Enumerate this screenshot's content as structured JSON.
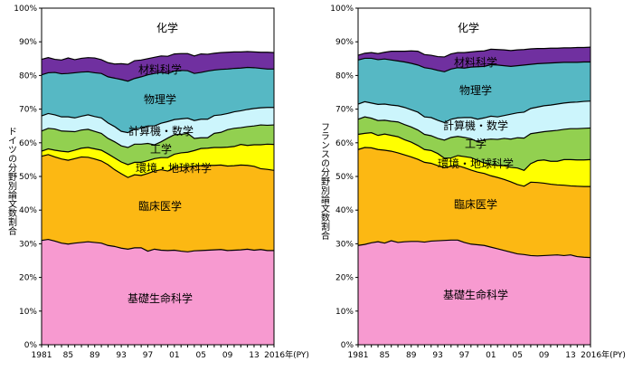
{
  "chart_data": [
    {
      "type": "area",
      "ylabel": "ドイツの分野別論文数割合",
      "x_ticks": [
        "1981",
        "85",
        "89",
        "93",
        "97",
        "01",
        "05",
        "09",
        "13",
        "2016年(PY)"
      ],
      "x": [
        1981,
        1982,
        1983,
        1984,
        1985,
        1986,
        1987,
        1988,
        1989,
        1990,
        1991,
        1992,
        1993,
        1994,
        1995,
        1996,
        1997,
        1998,
        1999,
        2000,
        2001,
        2002,
        2003,
        2004,
        2005,
        2006,
        2007,
        2008,
        2009,
        2010,
        2011,
        2012,
        2013,
        2014,
        2015,
        2016
      ],
      "xlim": [
        1981,
        2016
      ],
      "ylim": [
        0,
        100
      ],
      "y_ticks": [
        "0%",
        "10%",
        "20%",
        "30%",
        "40%",
        "50%",
        "60%",
        "70%",
        "80%",
        "90%",
        "100%"
      ],
      "stack_order": [
        "基礎生命科学",
        "臨床医学",
        "環境・地球科学",
        "工学",
        "計算機・数学",
        "物理学",
        "材料科学",
        "化学"
      ],
      "boundaries": [
        {
          "name": "基礎生命科学",
          "values": [
            31,
            31.3,
            30.8,
            30.2,
            29.9,
            30.2,
            30.4,
            30.6,
            30.4,
            30.2,
            29.5,
            29.2,
            28.7,
            28.4,
            28.8,
            28.8,
            27.8,
            28.4,
            28.1,
            28,
            28.1,
            27.8,
            27.6,
            27.9,
            28,
            28.1,
            28.2,
            28.3,
            28,
            28.1,
            28.2,
            28.4,
            28.1,
            28.3,
            28,
            28
          ]
        },
        {
          "name": "臨床医学",
          "values": [
            56,
            56.5,
            55.8,
            55.2,
            54.8,
            55.3,
            55.8,
            55.7,
            55.2,
            54.6,
            53.5,
            52,
            50.8,
            49.7,
            50.5,
            50.3,
            50.9,
            51.6,
            52,
            51.6,
            52.6,
            52.8,
            52.8,
            53.1,
            53.2,
            53.3,
            53.3,
            53.4,
            53.1,
            53.2,
            53.4,
            53.3,
            53,
            52.3,
            52.1,
            51.8
          ]
        },
        {
          "name": "環境・地球科学",
          "values": [
            57.5,
            58.2,
            57.8,
            57.5,
            57.3,
            57.8,
            58.4,
            58.6,
            58.2,
            57.8,
            56.7,
            55.5,
            54.3,
            53.5,
            54.2,
            54.2,
            54.7,
            55.3,
            55.6,
            55.6,
            56.6,
            57,
            57.2,
            57.7,
            58.3,
            58.4,
            58.6,
            58.6,
            58.7,
            58.9,
            59.5,
            59.2,
            59.4,
            59.4,
            59.6,
            59.5
          ]
        },
        {
          "name": "工学",
          "values": [
            63.5,
            64.3,
            64.1,
            63.5,
            63.4,
            63.3,
            63.8,
            64,
            63.4,
            62.8,
            61.3,
            60.3,
            59.1,
            58.6,
            59.6,
            59.6,
            59.8,
            59.4,
            60.3,
            61.4,
            62.4,
            62.5,
            62.8,
            61.3,
            61.5,
            61.5,
            62.8,
            63.1,
            63.9,
            64.3,
            64.5,
            64.8,
            65,
            65.3,
            65.2,
            65.3
          ]
        },
        {
          "name": "計算機・数学",
          "values": [
            68,
            68.7,
            68.3,
            67.7,
            67.7,
            67.4,
            67.9,
            68.3,
            67.8,
            67.4,
            65.9,
            64.8,
            63.4,
            63,
            64.2,
            64.3,
            65,
            65,
            65.8,
            66.3,
            66.9,
            67.1,
            67.3,
            66.6,
            67,
            67,
            68.1,
            68.3,
            68.7,
            69.2,
            69.5,
            69.9,
            70.2,
            70.4,
            70.5,
            70.5
          ]
        },
        {
          "name": "物理学",
          "values": [
            80.2,
            80.8,
            80.9,
            80.5,
            80.6,
            80.8,
            81,
            81.1,
            80.8,
            80.6,
            79.6,
            79.2,
            78.8,
            78.3,
            79.1,
            79.6,
            80.2,
            80.6,
            80.9,
            80.6,
            81.3,
            81.5,
            81.4,
            80.6,
            80.9,
            81.3,
            81.6,
            81.8,
            81.9,
            82.1,
            82.2,
            82.4,
            82.3,
            82.1,
            81.9,
            81.9
          ]
        },
        {
          "name": "材料科学",
          "values": [
            84.8,
            85.3,
            84.8,
            84.6,
            85.2,
            84.7,
            85.1,
            85.3,
            85.2,
            84.7,
            83.8,
            83.4,
            83.5,
            83.3,
            84.4,
            84.6,
            85,
            85.4,
            85.8,
            85.7,
            86.4,
            86.5,
            86.5,
            85.8,
            86.4,
            86.3,
            86.6,
            86.8,
            86.9,
            87,
            87,
            87.1,
            87,
            86.9,
            86.9,
            86.8
          ]
        },
        {
          "name": "化学",
          "values": [
            100,
            100,
            100,
            100,
            100,
            100,
            100,
            100,
            100,
            100,
            100,
            100,
            100,
            100,
            100,
            100,
            100,
            100,
            100,
            100,
            100,
            100,
            100,
            100,
            100,
            100,
            100,
            100,
            100,
            100,
            100,
            100,
            100,
            100,
            100,
            100
          ]
        }
      ]
    },
    {
      "type": "area",
      "ylabel": "フランスの分野別論文数割合",
      "x_ticks": [
        "1981",
        "85",
        "89",
        "93",
        "97",
        "01",
        "05",
        "09",
        "13",
        "2016年(PY)"
      ],
      "x": [
        1981,
        1982,
        1983,
        1984,
        1985,
        1986,
        1987,
        1988,
        1989,
        1990,
        1991,
        1992,
        1993,
        1994,
        1995,
        1996,
        1997,
        1998,
        1999,
        2000,
        2001,
        2002,
        2003,
        2004,
        2005,
        2006,
        2007,
        2008,
        2009,
        2010,
        2011,
        2012,
        2013,
        2014,
        2015,
        2016
      ],
      "xlim": [
        1981,
        2016
      ],
      "ylim": [
        0,
        100
      ],
      "y_ticks": [
        "0%",
        "10%",
        "20%",
        "30%",
        "40%",
        "50%",
        "60%",
        "70%",
        "80%",
        "90%",
        "100%"
      ],
      "stack_order": [
        "基礎生命科学",
        "臨床医学",
        "環境・地球科学",
        "工学",
        "計算機・数学",
        "物理学",
        "材料科学",
        "化学"
      ],
      "boundaries": [
        {
          "name": "基礎生命科学",
          "values": [
            29.5,
            29.8,
            30.3,
            30.6,
            30.2,
            30.9,
            30.4,
            30.6,
            30.7,
            30.7,
            30.5,
            30.8,
            30.9,
            31,
            31.1,
            31.1,
            30.4,
            29.9,
            29.7,
            29.5,
            29,
            28.5,
            28,
            27.5,
            27,
            26.8,
            26.5,
            26.4,
            26.5,
            26.6,
            26.7,
            26.5,
            26.7,
            26.2,
            26,
            25.9
          ]
        },
        {
          "name": "臨床医学",
          "values": [
            58,
            58.6,
            58.5,
            58,
            57.8,
            57.5,
            57,
            56.4,
            55.8,
            55.1,
            54.2,
            53.9,
            53.2,
            52.6,
            53,
            53.2,
            52.6,
            51.9,
            51.3,
            50.9,
            50.2,
            49.7,
            49.1,
            48.4,
            47.6,
            47.1,
            48.3,
            48.2,
            48,
            47.7,
            47.5,
            47.4,
            47.2,
            47.1,
            47,
            47
          ]
        },
        {
          "name": "環境・地球科学",
          "values": [
            62.5,
            62.8,
            63,
            62.2,
            62.6,
            62.2,
            61.8,
            60.9,
            60.2,
            59.2,
            58,
            57.7,
            56.8,
            55.4,
            55.5,
            56.2,
            55.9,
            55.6,
            54.8,
            54,
            53.5,
            53.3,
            53.2,
            52.7,
            52.5,
            51.8,
            53.8,
            54.7,
            54.9,
            54.5,
            54.5,
            55,
            55,
            54.9,
            54.9,
            55
          ]
        },
        {
          "name": "工学",
          "values": [
            67,
            67.7,
            67.3,
            66.6,
            66.7,
            66.4,
            66.2,
            65.4,
            64.7,
            63.8,
            62.5,
            62.1,
            61.3,
            60.8,
            61.6,
            61.9,
            61.6,
            61.2,
            60.3,
            60.9,
            61.1,
            61,
            61.3,
            61.1,
            61.5,
            61.4,
            62.7,
            63,
            63.3,
            63.5,
            63.7,
            64,
            64.2,
            64.2,
            64.3,
            64.4
          ]
        },
        {
          "name": "計算機・数学",
          "values": [
            71.5,
            72.2,
            71.8,
            71.4,
            71.5,
            71.2,
            71,
            70.5,
            69.8,
            69.1,
            67.7,
            67.5,
            66.7,
            66,
            67,
            67.4,
            67.5,
            67.5,
            67,
            67.4,
            67.9,
            67.7,
            68.1,
            68.5,
            68.9,
            69.1,
            70.2,
            70.6,
            71,
            71.2,
            71.5,
            71.8,
            72,
            72.1,
            72.3,
            72.4
          ]
        },
        {
          "name": "物理学",
          "values": [
            84.6,
            85.1,
            85.1,
            84.7,
            84.9,
            84.6,
            84.3,
            84,
            83.6,
            83.1,
            82.3,
            82,
            81.5,
            81.1,
            81.9,
            82.3,
            82.2,
            82.5,
            82.6,
            82.7,
            83.2,
            83.1,
            82.9,
            82.7,
            82.9,
            83.1,
            83.3,
            83.5,
            83.6,
            83.7,
            83.8,
            83.9,
            83.9,
            83.9,
            84,
            84
          ]
        },
        {
          "name": "材料科学",
          "values": [
            86,
            86.6,
            86.8,
            86.5,
            86.9,
            87.2,
            87.2,
            87.2,
            87.3,
            87.2,
            86.2,
            86,
            85.6,
            85.5,
            86.4,
            86.8,
            86.8,
            87,
            87.2,
            87.3,
            87.8,
            87.7,
            87.6,
            87.4,
            87.6,
            87.7,
            87.9,
            88,
            88,
            88.1,
            88.1,
            88.2,
            88.2,
            88.3,
            88.3,
            88.4
          ]
        },
        {
          "name": "化学",
          "values": [
            100,
            100,
            100,
            100,
            100,
            100,
            100,
            100,
            100,
            100,
            100,
            100,
            100,
            100,
            100,
            100,
            100,
            100,
            100,
            100,
            100,
            100,
            100,
            100,
            100,
            100,
            100,
            100,
            100,
            100,
            100,
            100,
            100,
            100,
            100,
            100
          ]
        }
      ]
    }
  ],
  "colors": {
    "基礎生命科学": "#f79ad0",
    "臨床医学": "#fcb813",
    "環境・地球科学": "#ffff00",
    "工学": "#92d050",
    "計算機・数学": "#ccf5fc",
    "物理学": "#56b8c4",
    "材料科学": "#7030a0",
    "化学": "#ffffff"
  },
  "field_labels": {
    "chem": "化学",
    "mat": "材料科学",
    "phys": "物理学",
    "comp": "計算機・数学",
    "eng": "工学",
    "env": "環境・地球科学",
    "clin": "臨床医学",
    "bio": "基礎生命科学"
  }
}
